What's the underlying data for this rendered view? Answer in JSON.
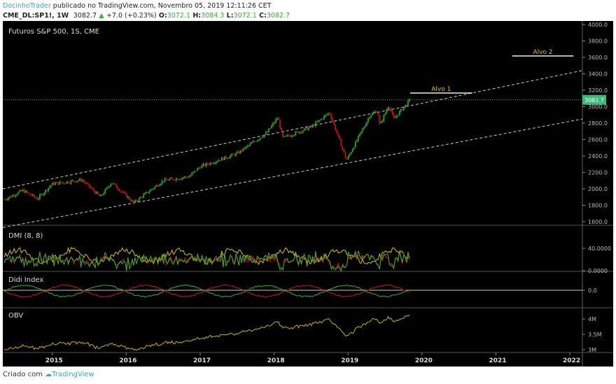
{
  "header": {
    "author": "DocinhoTrader",
    "published": "publicado no TradingView.com, Novembro 05, 2019 12:11:26 CET",
    "symbol": "CME_DL:SP1!, 1W",
    "last": "3082.7",
    "change": "+7.0 (+0.23%)",
    "o_label": "O:",
    "o": "3072.1",
    "h_label": "H:",
    "h": "3084.3",
    "l_label": "L:",
    "l": "3072.1",
    "c_label": "C:",
    "c": "3082.7"
  },
  "colors": {
    "up": "#2fb52f",
    "down": "#d01818",
    "price_tag": "#3cb878",
    "dmi_yellow": "#d8c400",
    "obv": "#c8b400",
    "brand": "#3aa0d8"
  },
  "chart_data": {
    "type": "candlestick",
    "title": "Futuros S&P 500, 1S, CME",
    "price_axis": {
      "ticks": [
        "4000.0",
        "3800.0",
        "3600.0",
        "3400.0",
        "3200.0",
        "3000.0",
        "2800.0",
        "2600.0",
        "2400.0",
        "2200.0",
        "2000.0",
        "1800.0",
        "1600.0"
      ],
      "range": [
        1560,
        4020
      ]
    },
    "last_price_tag": "3082.7",
    "time_axis": {
      "ticks": [
        "2015",
        "2016",
        "2017",
        "2018",
        "2019",
        "2020",
        "2021",
        "2022"
      ],
      "range": [
        2014.33,
        2022.17
      ]
    },
    "price_path": [
      [
        2014.35,
        1870
      ],
      [
        2014.6,
        1980
      ],
      [
        2014.8,
        1880
      ],
      [
        2015.0,
        2060
      ],
      [
        2015.4,
        2110
      ],
      [
        2015.65,
        1900
      ],
      [
        2015.8,
        2080
      ],
      [
        2016.1,
        1830
      ],
      [
        2016.5,
        2100
      ],
      [
        2016.85,
        2150
      ],
      [
        2017.0,
        2270
      ],
      [
        2017.5,
        2430
      ],
      [
        2017.9,
        2680
      ],
      [
        2018.05,
        2870
      ],
      [
        2018.12,
        2620
      ],
      [
        2018.5,
        2750
      ],
      [
        2018.75,
        2930
      ],
      [
        2018.98,
        2350
      ],
      [
        2019.3,
        2900
      ],
      [
        2019.4,
        2950
      ],
      [
        2019.43,
        2770
      ],
      [
        2019.55,
        3020
      ],
      [
        2019.62,
        2850
      ],
      [
        2019.75,
        2990
      ],
      [
        2019.84,
        3082.7
      ]
    ],
    "trendlines": [
      {
        "from": [
          2014.33,
          2000
        ],
        "to": [
          2022.17,
          3440
        ],
        "style": "dashed"
      },
      {
        "from": [
          2014.33,
          1530
        ],
        "to": [
          2022.17,
          2850
        ],
        "style": "dashed"
      }
    ],
    "targets": [
      {
        "label": "Alvo 1",
        "price": 3166,
        "from": 2019.84,
        "to": 2020.68
      },
      {
        "label": "Alvo 2",
        "price": 3617,
        "from": 2021.22,
        "to": 2022.05
      }
    ],
    "panes": [
      {
        "label": "DMI (8, 8)",
        "ticks": [
          "40.0000",
          "0.0000"
        ]
      },
      {
        "label": "Didi Index",
        "ticks": [
          "0.0"
        ]
      },
      {
        "label": "OBV",
        "ticks": [
          "4M",
          "3.5M",
          "3M"
        ]
      }
    ]
  },
  "footer": {
    "created": "Criado com",
    "brand": "TradingView"
  }
}
